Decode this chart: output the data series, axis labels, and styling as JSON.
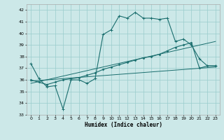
{
  "xlabel": "Humidex (Indice chaleur)",
  "xlim": [
    -0.5,
    23.5
  ],
  "ylim": [
    33,
    42.5
  ],
  "yticks": [
    33,
    34,
    35,
    36,
    37,
    38,
    39,
    40,
    41,
    42
  ],
  "xticks": [
    0,
    1,
    2,
    3,
    4,
    5,
    6,
    7,
    8,
    9,
    10,
    11,
    12,
    13,
    14,
    15,
    16,
    17,
    18,
    19,
    20,
    21,
    22,
    23
  ],
  "bg_color": "#cce8e8",
  "grid_color": "#99cccc",
  "line_color": "#1a6e6e",
  "line1_x": [
    0,
    1,
    2,
    3,
    4,
    5,
    6,
    7,
    8,
    9,
    10,
    11,
    12,
    13,
    14,
    15,
    16,
    17,
    18,
    19,
    20,
    21,
    22,
    23
  ],
  "line1_y": [
    37.4,
    36.1,
    35.4,
    35.5,
    33.5,
    36.0,
    36.0,
    35.7,
    36.1,
    39.9,
    40.3,
    41.5,
    41.3,
    41.8,
    41.3,
    41.3,
    41.2,
    41.3,
    39.3,
    39.5,
    39.0,
    37.8,
    37.2,
    37.2
  ],
  "line2_x": [
    0,
    1,
    2,
    3,
    4,
    5,
    6,
    7,
    8,
    9,
    10,
    11,
    12,
    13,
    14,
    15,
    16,
    17,
    18,
    19,
    20,
    21,
    22,
    23
  ],
  "line2_y": [
    36.0,
    35.8,
    35.6,
    35.8,
    36.0,
    36.1,
    36.2,
    36.4,
    36.6,
    36.9,
    37.1,
    37.3,
    37.5,
    37.7,
    37.9,
    38.0,
    38.2,
    38.5,
    38.8,
    39.0,
    39.2,
    37.0,
    37.2,
    37.2
  ],
  "line3_y": [
    35.7,
    39.3
  ],
  "line4_y": [
    35.9,
    37.1
  ]
}
